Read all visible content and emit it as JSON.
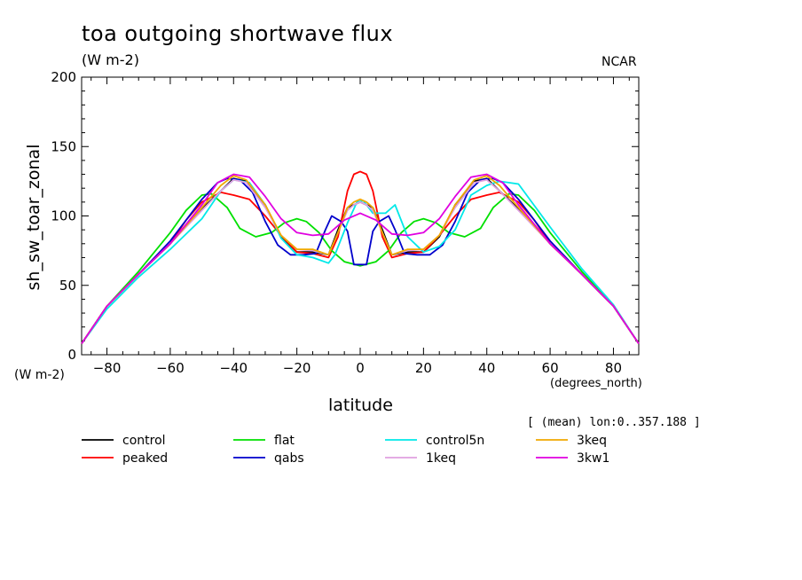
{
  "header": {
    "title": "toa outgoing shortwave flux",
    "subtitle": "(W m-2)",
    "org": "NCAR"
  },
  "axes": {
    "yunit_bottom": "(W m-2)",
    "xunit": "(degrees_north)",
    "avg_note": "[ (mean) lon:0..357.188 ]"
  },
  "chart_data": {
    "type": "line",
    "title": "toa outgoing shortwave flux",
    "xlabel": "latitude",
    "ylabel": "sh_sw_toar_zonal",
    "xlim": [
      -88,
      88
    ],
    "ylim": [
      0,
      200
    ],
    "xticks": [
      -80,
      -60,
      -40,
      -20,
      0,
      20,
      40,
      60,
      80
    ],
    "yticks": [
      0,
      50,
      100,
      150,
      200
    ],
    "legend_placement": "below",
    "series": [
      {
        "name": "control",
        "color": "#000000",
        "x": [
          -88,
          -80,
          -70,
          -60,
          -50,
          -44,
          -40,
          -36,
          -30,
          -25,
          -20,
          -15,
          -10,
          -7,
          -4,
          -2,
          0,
          2,
          4,
          7,
          10,
          15,
          20,
          25,
          30,
          36,
          40,
          44,
          50,
          60,
          70,
          80,
          88
        ],
        "y": [
          8,
          35,
          58,
          80,
          105,
          118,
          127,
          125,
          108,
          85,
          74,
          74,
          72,
          90,
          106,
          108,
          110,
          108,
          106,
          90,
          72,
          74,
          74,
          85,
          108,
          125,
          127,
          118,
          105,
          80,
          58,
          35,
          8
        ]
      },
      {
        "name": "peaked",
        "color": "#ff0000",
        "x": [
          -88,
          -80,
          -70,
          -60,
          -55,
          -50,
          -44,
          -40,
          -35,
          -30,
          -25,
          -20,
          -15,
          -10,
          -7,
          -4,
          -2,
          0,
          2,
          4,
          7,
          10,
          15,
          20,
          25,
          30,
          35,
          40,
          44,
          50,
          55,
          60,
          70,
          80,
          88
        ],
        "y": [
          8,
          35,
          58,
          80,
          97,
          110,
          117,
          115,
          112,
          100,
          86,
          74,
          73,
          70,
          85,
          118,
          130,
          132,
          130,
          118,
          85,
          70,
          73,
          74,
          86,
          100,
          112,
          115,
          117,
          110,
          97,
          80,
          58,
          35,
          8
        ]
      },
      {
        "name": "flat",
        "color": "#00e000",
        "x": [
          -88,
          -80,
          -70,
          -60,
          -55,
          -50,
          -47,
          -42,
          -38,
          -33,
          -28,
          -24,
          -20,
          -17,
          -13,
          -9,
          -5,
          0,
          5,
          9,
          13,
          17,
          20,
          24,
          28,
          33,
          38,
          42,
          47,
          50,
          55,
          60,
          70,
          80,
          88
        ],
        "y": [
          8,
          35,
          60,
          88,
          104,
          115,
          116,
          106,
          91,
          85,
          88,
          95,
          98,
          96,
          88,
          75,
          67,
          64,
          67,
          75,
          88,
          96,
          98,
          95,
          88,
          85,
          91,
          106,
          116,
          115,
          104,
          88,
          60,
          35,
          8
        ]
      },
      {
        "name": "qabs",
        "color": "#0000cc",
        "x": [
          -88,
          -80,
          -70,
          -60,
          -50,
          -45,
          -42,
          -38,
          -34,
          -30,
          -26,
          -22,
          -18,
          -14,
          -11,
          -9,
          -6,
          -4,
          -2,
          0,
          2,
          4,
          6,
          9,
          11,
          14,
          18,
          22,
          26,
          30,
          34,
          38,
          42,
          45,
          50,
          60,
          70,
          80,
          88
        ],
        "y": [
          8,
          35,
          58,
          82,
          112,
          124,
          127,
          126,
          117,
          96,
          79,
          72,
          72,
          73,
          90,
          100,
          96,
          89,
          65,
          65,
          65,
          89,
          96,
          100,
          90,
          73,
          72,
          72,
          79,
          96,
          117,
          126,
          127,
          124,
          112,
          82,
          58,
          35,
          8
        ]
      },
      {
        "name": "control5n",
        "color": "#00e8e8",
        "x": [
          -88,
          -80,
          -70,
          -60,
          -50,
          -44,
          -40,
          -35,
          -30,
          -25,
          -20,
          -15,
          -10,
          -8,
          -4,
          -1,
          1,
          4,
          8,
          11,
          15,
          20,
          25,
          30,
          35,
          40,
          44,
          50,
          60,
          70,
          80,
          88
        ],
        "y": [
          8,
          33,
          56,
          76,
          98,
          118,
          126,
          124,
          108,
          84,
          72,
          70,
          66,
          72,
          95,
          110,
          111,
          102,
          102,
          108,
          85,
          74,
          78,
          90,
          115,
          122,
          125,
          123,
          92,
          62,
          36,
          8
        ]
      },
      {
        "name": "1keq",
        "color": "#e0a0e0",
        "x": [
          -88,
          -80,
          -70,
          -60,
          -50,
          -44,
          -40,
          -36,
          -30,
          -25,
          -20,
          -15,
          -10,
          -7,
          -4,
          -2,
          0,
          2,
          4,
          7,
          10,
          15,
          20,
          25,
          30,
          36,
          40,
          44,
          50,
          60,
          70,
          80,
          88
        ],
        "y": [
          8,
          35,
          58,
          80,
          104,
          118,
          126,
          124,
          106,
          86,
          76,
          75,
          72,
          88,
          104,
          108,
          110,
          108,
          104,
          88,
          72,
          75,
          76,
          86,
          106,
          124,
          126,
          118,
          104,
          80,
          58,
          35,
          8
        ]
      },
      {
        "name": "3keq",
        "color": "#f0a800",
        "x": [
          -88,
          -80,
          -70,
          -60,
          -50,
          -44,
          -40,
          -36,
          -30,
          -25,
          -20,
          -15,
          -10,
          -7,
          -4,
          -2,
          0,
          2,
          4,
          7,
          10,
          15,
          20,
          25,
          30,
          36,
          40,
          44,
          50,
          60,
          70,
          80,
          88
        ],
        "y": [
          8,
          35,
          58,
          80,
          106,
          122,
          129,
          126,
          108,
          86,
          76,
          76,
          72,
          88,
          106,
          110,
          112,
          110,
          106,
          88,
          72,
          76,
          76,
          86,
          108,
          126,
          129,
          122,
          106,
          80,
          58,
          35,
          8
        ]
      },
      {
        "name": "3kw1",
        "color": "#e000e0",
        "x": [
          -88,
          -80,
          -70,
          -60,
          -50,
          -45,
          -40,
          -35,
          -30,
          -25,
          -20,
          -15,
          -10,
          -5,
          0,
          5,
          10,
          15,
          20,
          25,
          30,
          35,
          40,
          45,
          50,
          60,
          70,
          80,
          88
        ],
        "y": [
          8,
          35,
          58,
          80,
          108,
          124,
          130,
          128,
          114,
          98,
          88,
          86,
          87,
          97,
          102,
          97,
          87,
          86,
          88,
          98,
          114,
          128,
          130,
          124,
          108,
          80,
          58,
          35,
          8
        ]
      }
    ]
  }
}
